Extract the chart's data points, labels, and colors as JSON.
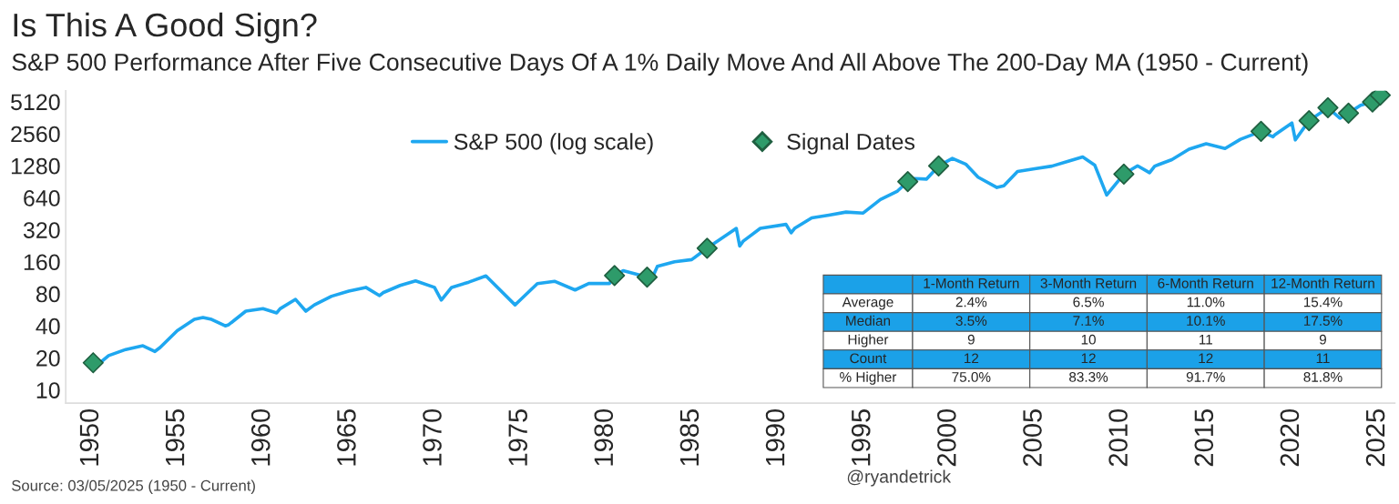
{
  "chart_data": {
    "type": "line",
    "title": "Is This A Good Sign?",
    "subtitle": "S&P 500 Performance After Five Consecutive Days Of A 1% Daily Move And All Above The 200-Day MA (1950 - Current)",
    "series": [
      {
        "name": "S&P 500 (log scale)",
        "color": "#1ea7f0",
        "marker": "none",
        "x": [
          1950.5,
          1951.0,
          1952.0,
          1953.0,
          1953.7,
          1954.0,
          1955.0,
          1956.0,
          1956.5,
          1957.0,
          1957.8,
          1958.0,
          1959.0,
          1960.0,
          1960.8,
          1961.0,
          1961.9,
          1962.5,
          1963.0,
          1964.0,
          1965.0,
          1966.0,
          1966.8,
          1967.0,
          1968.0,
          1968.9,
          1970.0,
          1970.4,
          1971.0,
          1972.0,
          1973.0,
          1974.7,
          1975.0,
          1976.0,
          1977.0,
          1978.2,
          1979.0,
          1980.2,
          1980.5,
          1981.0,
          1982.4,
          1982.6,
          1983.0,
          1984.0,
          1985.0,
          1985.9,
          1987.6,
          1987.8,
          1988.0,
          1989.0,
          1990.5,
          1990.8,
          1991.0,
          1992.0,
          1993.0,
          1994.0,
          1995.0,
          1996.0,
          1997.0,
          1997.6,
          1998.0,
          1998.7,
          1999.4,
          2000.2,
          2001.0,
          2001.7,
          2002.8,
          2003.2,
          2004.0,
          2005.0,
          2006.0,
          2007.0,
          2007.8,
          2008.5,
          2009.2,
          2010.2,
          2011.0,
          2011.7,
          2012.0,
          2013.0,
          2014.0,
          2015.0,
          2016.1,
          2017.0,
          2018.2,
          2018.9,
          2019.0,
          2020.0,
          2020.2,
          2021.0,
          2022.1,
          2022.8,
          2023.3,
          2024.0,
          2024.7,
          2025.15
        ],
        "values": [
          18,
          21,
          24,
          26,
          23,
          25,
          36,
          46,
          48,
          46,
          40,
          41,
          55,
          58,
          53,
          58,
          71,
          55,
          63,
          76,
          85,
          92,
          77,
          82,
          96,
          106,
          92,
          70,
          92,
          103,
          118,
          63,
          70,
          100,
          105,
          87,
          100,
          100,
          119,
          132,
          115,
          104,
          145,
          160,
          168,
          215,
          330,
          225,
          250,
          330,
          360,
          300,
          330,
          415,
          440,
          470,
          460,
          615,
          740,
          910,
          970,
          960,
          1275,
          1500,
          1320,
          1000,
          800,
          830,
          1130,
          1200,
          1270,
          1420,
          1550,
          1300,
          680,
          1070,
          1280,
          1100,
          1270,
          1460,
          1830,
          2060,
          1860,
          2270,
          2700,
          2400,
          2500,
          3230,
          2240,
          3400,
          4500,
          3580,
          4000,
          4750,
          5100,
          5900
        ]
      },
      {
        "name": "Signal Dates",
        "color": "#2e9b6a",
        "type": "scatter",
        "marker": "diamond",
        "x": [
          1950.1,
          1980.5,
          1982.4,
          1985.9,
          1997.6,
          1999.4,
          2010.2,
          2018.2,
          2021.0,
          2022.1,
          2023.3,
          2024.7,
          2025.15
        ],
        "values": [
          18,
          119,
          115,
          215,
          910,
          1275,
          1070,
          2700,
          3400,
          4500,
          4000,
          5100,
          5900
        ]
      }
    ],
    "log": "y",
    "xlim": [
      1948.5,
      2026
    ],
    "xticks": [
      1950,
      1955,
      1960,
      1965,
      1970,
      1975,
      1980,
      1985,
      1990,
      1995,
      2000,
      2005,
      2010,
      2015,
      2020,
      2025
    ],
    "ylim": [
      7.5,
      6500
    ],
    "yticks": [
      10,
      20,
      40,
      80,
      160,
      320,
      640,
      1280,
      2560,
      5120
    ],
    "grid": false,
    "legend": "top",
    "annotations": [
      "Source: 03/05/2025 (1950 - Current)",
      "@ryandetrick",
      "1-Month Return",
      "3-Month Return",
      "6-Month Return",
      "12-Month Return",
      "Average",
      "2.4%",
      "6.5%",
      "11.0%",
      "15.4%",
      "Median",
      "3.5%",
      "7.1%",
      "10.1%",
      "17.5%",
      "Higher",
      "9",
      "10",
      "11",
      "9",
      "Count",
      "12",
      "12",
      "12",
      "11",
      "% Higher",
      "75.0%",
      "83.3%",
      "91.7%",
      "81.8%"
    ]
  }
}
